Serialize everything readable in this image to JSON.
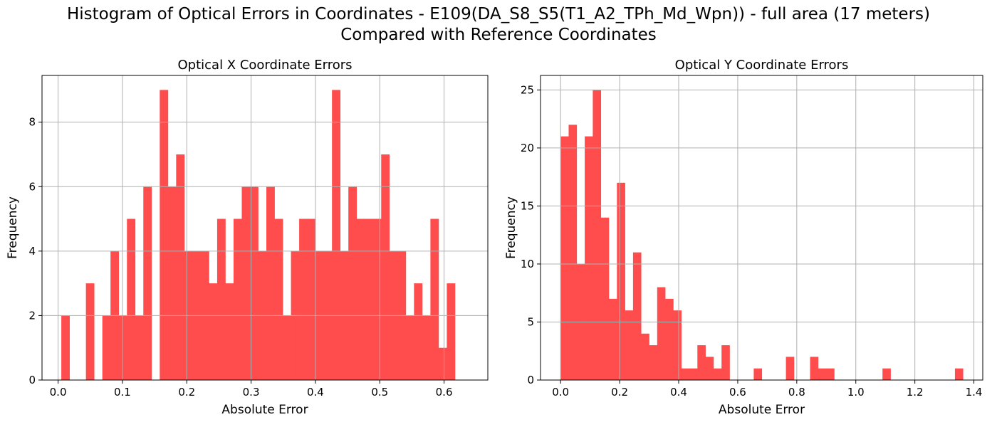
{
  "figure": {
    "title_line1": "Histogram of Optical Errors in Coordinates - E109(DA_S8_S5(T1_A2_TPh_Md_Wpn)) - full area (17 meters)",
    "title_line2": "Compared with Reference Coordinates"
  },
  "colors": {
    "bar": "#ff4c4c",
    "grid": "#b0b0b0",
    "axis": "#000000"
  },
  "chart_data": [
    {
      "type": "bar",
      "title": "Optical X Coordinate Errors",
      "xlabel": "Absolute Error",
      "ylabel": "Frequency",
      "grid": true,
      "xlim": [
        -0.025,
        0.668
      ],
      "ylim": [
        0,
        9.45
      ],
      "xticks": [
        0.0,
        0.1,
        0.2,
        0.3,
        0.4,
        0.5,
        0.6
      ],
      "xtick_labels": [
        "0.0",
        "0.1",
        "0.2",
        "0.3",
        "0.4",
        "0.5",
        "0.6"
      ],
      "yticks": [
        0,
        2,
        4,
        6,
        8
      ],
      "ytick_labels": [
        "0",
        "2",
        "4",
        "6",
        "8"
      ],
      "bin_start": 0.005,
      "bin_width": 0.01275,
      "values": [
        2,
        0,
        0,
        3,
        0,
        2,
        4,
        2,
        5,
        2,
        6,
        0,
        9,
        6,
        7,
        4,
        4,
        4,
        3,
        5,
        3,
        5,
        6,
        6,
        4,
        6,
        5,
        2,
        4,
        5,
        5,
        4,
        4,
        9,
        4,
        6,
        5,
        5,
        5,
        7,
        4,
        4,
        2,
        3,
        2,
        5,
        1,
        3
      ]
    },
    {
      "type": "bar",
      "title": "Optical Y Coordinate Errors",
      "xlabel": "Absolute Error",
      "ylabel": "Frequency",
      "grid": true,
      "xlim": [
        -0.068,
        1.43
      ],
      "ylim": [
        0,
        26.25
      ],
      "xticks": [
        0.0,
        0.2,
        0.4,
        0.6,
        0.8,
        1.0,
        1.2,
        1.4
      ],
      "xtick_labels": [
        "0.0",
        "0.2",
        "0.4",
        "0.6",
        "0.8",
        "1.0",
        "1.2",
        "1.4"
      ],
      "yticks": [
        0,
        5,
        10,
        15,
        20,
        25
      ],
      "ytick_labels": [
        "0",
        "5",
        "10",
        "15",
        "20",
        "25"
      ],
      "bin_start": 0.0,
      "bin_width": 0.02726,
      "values": [
        21,
        22,
        10,
        21,
        25,
        14,
        7,
        17,
        6,
        11,
        4,
        3,
        8,
        7,
        6,
        1,
        1,
        3,
        2,
        1,
        3,
        0,
        0,
        0,
        1,
        0,
        0,
        0,
        2,
        0,
        0,
        2,
        1,
        1,
        0,
        0,
        0,
        0,
        0,
        0,
        1,
        0,
        0,
        0,
        0,
        0,
        0,
        0,
        0,
        1
      ]
    }
  ]
}
